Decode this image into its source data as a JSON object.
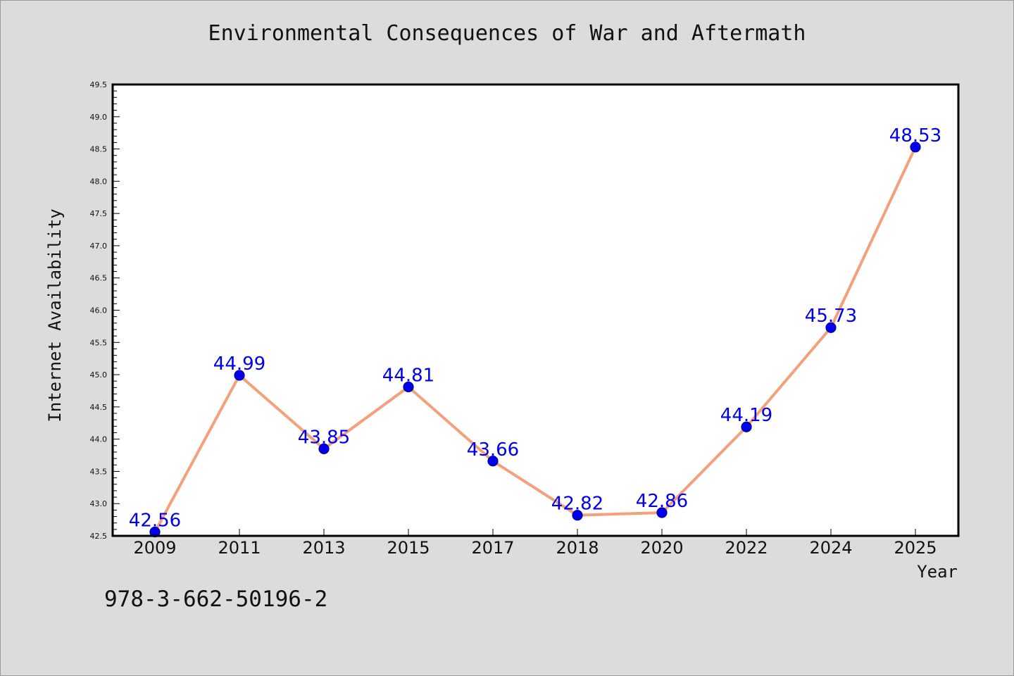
{
  "chart_data": {
    "type": "line",
    "title": "Environmental Consequences of War and Aftermath",
    "xlabel": "Year",
    "ylabel": "Internet Availability",
    "categories": [
      "2009",
      "2011",
      "2013",
      "2015",
      "2017",
      "2018",
      "2020",
      "2022",
      "2024",
      "2025"
    ],
    "series": [
      {
        "values": [
          42.56,
          44.99,
          43.85,
          44.81,
          43.66,
          42.82,
          42.86,
          44.19,
          45.73,
          48.53
        ],
        "labels": [
          "42.56",
          "44.99",
          "43.85",
          "44.81",
          "43.66",
          "42.82",
          "42.86",
          "44.19",
          "45.73",
          "48.53"
        ]
      }
    ],
    "ylim": [
      42.5,
      49.5
    ],
    "yticks": [
      "42.5",
      "43.0",
      "43.5",
      "44.0",
      "44.5",
      "45.0",
      "45.5",
      "46.0",
      "46.5",
      "47.0",
      "47.5",
      "48.0",
      "48.5",
      "49.0",
      "49.5"
    ],
    "grid": false,
    "legend": "none",
    "colors": {
      "line": "#f4a07a",
      "marker": "#0000ee",
      "marker_edge": "#00008b",
      "data_label": "#0000ee",
      "background": "#dcdcdc",
      "plot_background": "#ffffff"
    }
  },
  "footer": {
    "isbn": "978-3-662-50196-2"
  }
}
